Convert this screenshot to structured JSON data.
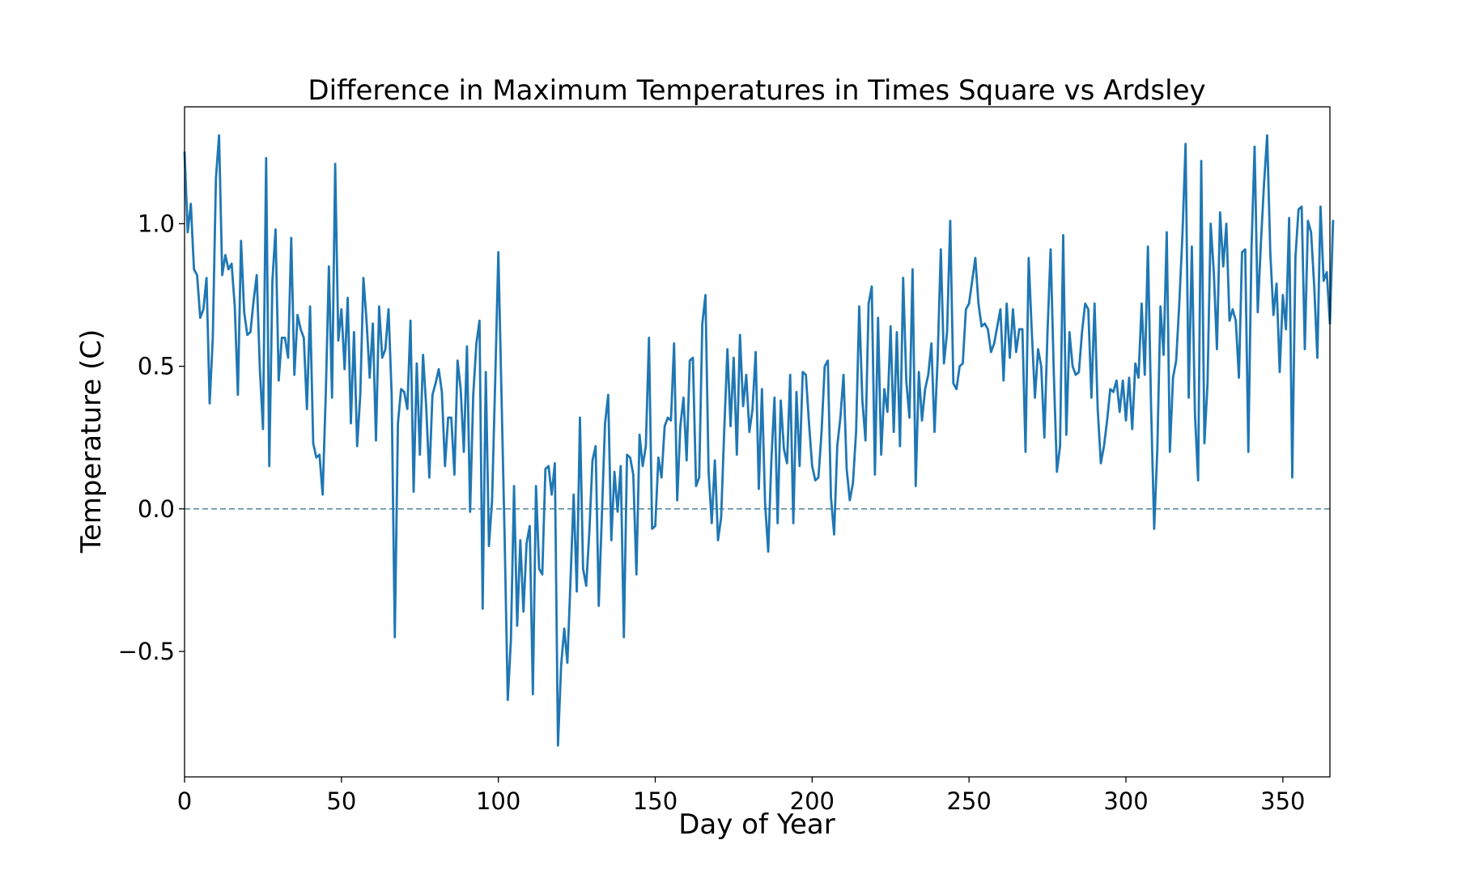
{
  "chart_data": {
    "type": "line",
    "title": "Difference in Maximum Temperatures in Times Square vs Ardsley",
    "xlabel": "Day of Year",
    "ylabel": "Temperature (C)",
    "xlim": [
      0,
      365
    ],
    "ylim": [
      -0.94,
      1.41
    ],
    "x_ticks": [
      0,
      50,
      100,
      150,
      200,
      250,
      300,
      350
    ],
    "x_tick_labels": [
      "0",
      "50",
      "100",
      "150",
      "200",
      "250",
      "300",
      "350"
    ],
    "y_ticks": [
      -0.5,
      0.0,
      0.5,
      1.0
    ],
    "y_tick_labels": [
      "−0.5",
      "0.0",
      "0.5",
      "1.0"
    ],
    "grid": false,
    "reference_line": {
      "y": 0.0,
      "style": "dashed",
      "color": "#5f8f9e"
    },
    "series": [
      {
        "color": "#1f77b4",
        "x_start": 0,
        "x_step": 1,
        "values": [
          1.25,
          0.97,
          1.07,
          0.84,
          0.82,
          0.67,
          0.7,
          0.81,
          0.37,
          0.6,
          1.16,
          1.31,
          0.82,
          0.89,
          0.84,
          0.86,
          0.71,
          0.4,
          0.94,
          0.69,
          0.61,
          0.62,
          0.73,
          0.82,
          0.49,
          0.28,
          1.23,
          0.15,
          0.8,
          0.98,
          0.45,
          0.6,
          0.6,
          0.53,
          0.95,
          0.47,
          0.68,
          0.63,
          0.6,
          0.35,
          0.71,
          0.23,
          0.18,
          0.19,
          0.05,
          0.4,
          0.85,
          0.39,
          1.21,
          0.59,
          0.7,
          0.49,
          0.74,
          0.3,
          0.62,
          0.22,
          0.4,
          0.81,
          0.66,
          0.46,
          0.65,
          0.24,
          0.71,
          0.53,
          0.56,
          0.7,
          0.4,
          -0.45,
          0.3,
          0.42,
          0.41,
          0.35,
          0.66,
          0.06,
          0.51,
          0.19,
          0.54,
          0.36,
          0.11,
          0.4,
          0.44,
          0.49,
          0.41,
          0.15,
          0.32,
          0.32,
          0.12,
          0.52,
          0.42,
          0.2,
          0.57,
          -0.01,
          0.4,
          0.58,
          0.66,
          -0.35,
          0.48,
          -0.13,
          0.03,
          0.45,
          0.9,
          0.4,
          -0.1,
          -0.67,
          -0.46,
          0.08,
          -0.41,
          -0.11,
          -0.36,
          -0.12,
          -0.06,
          -0.65,
          0.08,
          -0.21,
          -0.23,
          0.14,
          0.15,
          0.05,
          0.16,
          -0.83,
          -0.55,
          -0.42,
          -0.54,
          -0.25,
          0.05,
          -0.29,
          0.32,
          -0.21,
          -0.27,
          -0.08,
          0.17,
          0.22,
          -0.34,
          -0.02,
          0.3,
          0.4,
          -0.11,
          0.13,
          -0.01,
          0.15,
          -0.45,
          0.19,
          0.18,
          0.12,
          -0.23,
          0.26,
          0.15,
          0.22,
          0.6,
          -0.07,
          -0.06,
          0.18,
          0.11,
          0.29,
          0.32,
          0.31,
          0.58,
          0.03,
          0.29,
          0.39,
          0.17,
          0.52,
          0.53,
          0.08,
          0.11,
          0.65,
          0.75,
          0.13,
          -0.05,
          0.17,
          -0.11,
          -0.03,
          0.28,
          0.56,
          0.29,
          0.53,
          0.19,
          0.61,
          0.36,
          0.47,
          0.27,
          0.35,
          0.55,
          0.07,
          0.42,
          0.02,
          -0.15,
          0.17,
          0.39,
          -0.05,
          0.38,
          0.21,
          0.16,
          0.47,
          -0.05,
          0.41,
          0.15,
          0.48,
          0.47,
          0.3,
          0.15,
          0.1,
          0.11,
          0.27,
          0.5,
          0.52,
          0.04,
          -0.09,
          0.22,
          0.32,
          0.47,
          0.14,
          0.03,
          0.09,
          0.27,
          0.71,
          0.38,
          0.24,
          0.72,
          0.78,
          0.12,
          0.67,
          0.19,
          0.42,
          0.34,
          0.64,
          0.27,
          0.62,
          0.22,
          0.81,
          0.45,
          0.32,
          0.84,
          0.08,
          0.48,
          0.31,
          0.42,
          0.47,
          0.58,
          0.27,
          0.53,
          0.91,
          0.51,
          0.62,
          1.01,
          0.44,
          0.42,
          0.5,
          0.51,
          0.7,
          0.72,
          0.8,
          0.88,
          0.72,
          0.64,
          0.65,
          0.63,
          0.55,
          0.58,
          0.64,
          0.7,
          0.45,
          0.72,
          0.53,
          0.7,
          0.55,
          0.63,
          0.63,
          0.2,
          0.88,
          0.62,
          0.39,
          0.56,
          0.5,
          0.25,
          0.62,
          0.91,
          0.48,
          0.13,
          0.22,
          0.96,
          0.26,
          0.62,
          0.5,
          0.47,
          0.48,
          0.62,
          0.72,
          0.7,
          0.39,
          0.72,
          0.35,
          0.16,
          0.22,
          0.31,
          0.42,
          0.41,
          0.45,
          0.34,
          0.45,
          0.31,
          0.46,
          0.28,
          0.51,
          0.46,
          0.72,
          0.47,
          0.92,
          0.36,
          -0.07,
          0.21,
          0.71,
          0.54,
          0.97,
          0.2,
          0.46,
          0.52,
          0.72,
          0.96,
          1.28,
          0.39,
          0.92,
          0.33,
          0.1,
          1.22,
          0.23,
          0.44,
          1.0,
          0.83,
          0.56,
          1.04,
          0.85,
          1.0,
          0.66,
          0.7,
          0.66,
          0.46,
          0.9,
          0.91,
          0.2,
          0.91,
          1.27,
          0.69,
          0.93,
          1.14,
          1.31,
          0.9,
          0.68,
          0.79,
          0.48,
          0.75,
          0.63,
          1.02,
          0.11,
          0.88,
          1.05,
          1.06,
          0.56,
          1.01,
          0.97,
          0.78,
          0.53,
          1.06,
          0.8,
          0.83,
          0.65,
          1.01
        ]
      }
    ]
  }
}
